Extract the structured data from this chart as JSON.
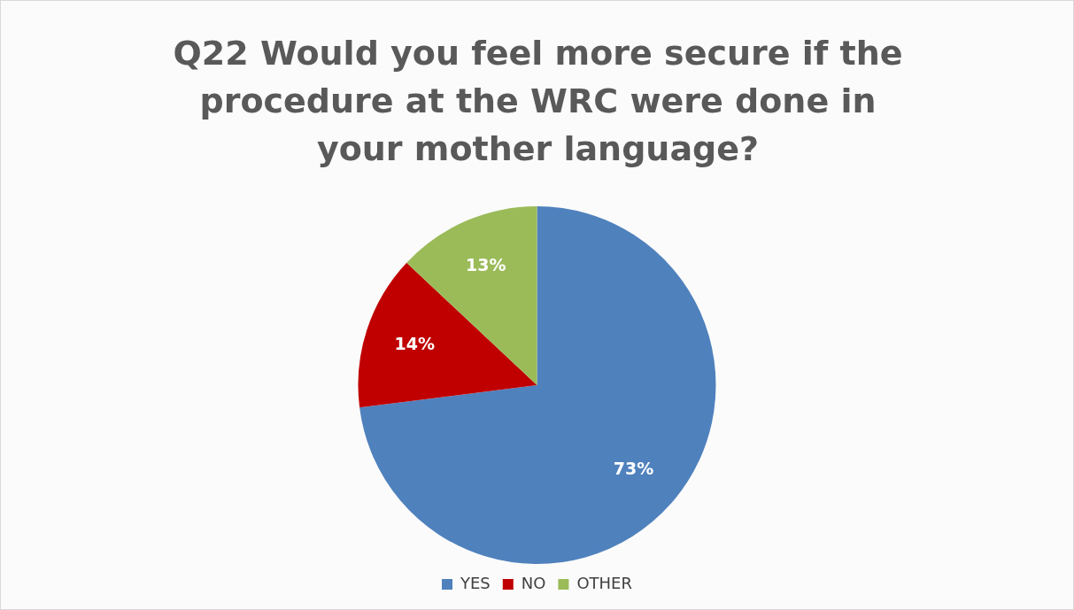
{
  "chart_data": {
    "type": "pie",
    "title": "Q22 Would you feel more secure if the procedure at the WRC were done in your mother language?",
    "categories": [
      "YES",
      "NO",
      "OTHER"
    ],
    "values": [
      73,
      14,
      13
    ],
    "colors": [
      "#4f81bd",
      "#c00000",
      "#9bbb59"
    ],
    "value_labels": [
      "73%",
      "14%",
      "13%"
    ],
    "legend": "bottom"
  }
}
